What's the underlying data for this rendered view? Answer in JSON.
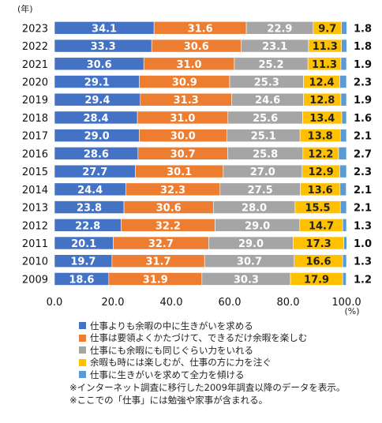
{
  "chart_data": {
    "type": "bar",
    "orientation": "horizontal",
    "stacked": true,
    "year_unit_label": "(年)",
    "x_unit_label": "(%)",
    "xlim": [
      0,
      100
    ],
    "x_ticks": [
      "0.0",
      "20.0",
      "40.0",
      "60.0",
      "80.0",
      "100.0"
    ],
    "categories": [
      "2023",
      "2022",
      "2021",
      "2020",
      "2019",
      "2018",
      "2017",
      "2016",
      "2015",
      "2014",
      "2013",
      "2012",
      "2011",
      "2010",
      "2009"
    ],
    "series": [
      {
        "name": "仕事よりも余暇の中に生きがいを求める",
        "color": "#4472C4",
        "values": [
          34.1,
          33.3,
          30.6,
          29.1,
          29.4,
          28.4,
          29.0,
          28.6,
          27.7,
          24.4,
          23.8,
          22.8,
          20.1,
          19.7,
          18.6
        ]
      },
      {
        "name": "仕事は要領よくかたづけて、できるだけ余暇を楽しむ",
        "color": "#ED7D31",
        "values": [
          31.6,
          30.6,
          31.0,
          30.9,
          31.3,
          31.0,
          30.0,
          30.7,
          30.1,
          32.3,
          30.6,
          32.2,
          32.7,
          31.7,
          31.9
        ]
      },
      {
        "name": "仕事にも余暇にも同じぐらい力をいれる",
        "color": "#A5A5A5",
        "values": [
          22.9,
          23.1,
          25.2,
          25.3,
          24.6,
          25.6,
          25.1,
          25.8,
          27.0,
          27.5,
          28.0,
          29.0,
          29.0,
          30.7,
          30.3
        ]
      },
      {
        "name": "余暇も時には楽しむが、仕事の方に力を注ぐ",
        "color": "#FFC000",
        "values": [
          9.7,
          11.3,
          11.3,
          12.4,
          12.8,
          13.4,
          13.8,
          12.2,
          12.9,
          13.6,
          15.5,
          14.7,
          17.3,
          16.6,
          17.9
        ]
      },
      {
        "name": "仕事に生きがいを求めて全力を傾ける",
        "color": "#5B9BD5",
        "values": [
          1.8,
          1.8,
          1.9,
          2.3,
          1.9,
          1.6,
          2.1,
          2.7,
          2.3,
          2.1,
          2.1,
          1.3,
          1.0,
          1.3,
          1.2
        ]
      }
    ],
    "legend_position": "bottom",
    "grid": false
  },
  "notes": [
    "※インターネット調査に移行した2009年調査以降のデータを表示。",
    "※ここでの「仕事」には勉強や家事が含まれる。"
  ]
}
